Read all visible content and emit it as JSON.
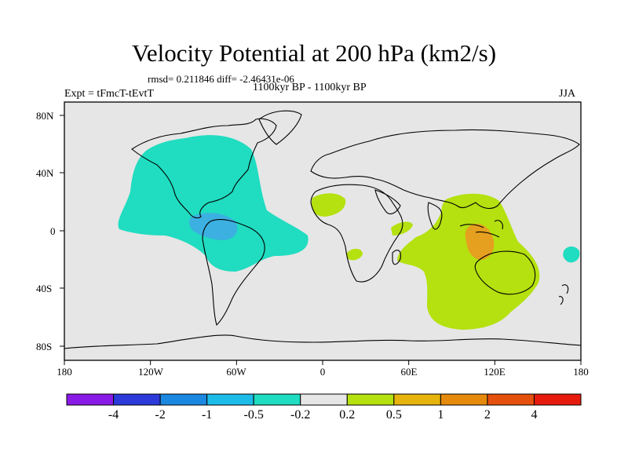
{
  "title": "Velocity Potential at 200 hPa (km2/s)",
  "stats": "rmsd= 0.211846  diff= -2.46431e-06",
  "experiment": "Expt = tFmcT-tEvtT",
  "period": "1100kyr BP - 1100kyr BP",
  "season": "JJA",
  "lat_labels": [
    "80N",
    "40N",
    "0",
    "40S",
    "80S"
  ],
  "lon_labels": [
    "180",
    "120W",
    "60W",
    "0",
    "60E",
    "120E",
    "180"
  ],
  "colorbar": {
    "colors": [
      "#8a1ae6",
      "#2b3ad9",
      "#1a87e0",
      "#1dbce8",
      "#20dcc0",
      "#e6e6e6",
      "#b4e10f",
      "#e6b40c",
      "#e68a0d",
      "#e6500d",
      "#e61a0d"
    ],
    "labels": [
      "-4",
      "-2",
      "-1",
      "-0.5",
      "-0.2",
      "0.2",
      "0.5",
      "1",
      "2",
      "4"
    ]
  },
  "map_colors": {
    "background": "#e6e6e6",
    "negative_weak": "#20dcc0",
    "negative_mid": "#3cb0e0",
    "positive_weak": "#b4e10f",
    "positive_mid": "#e6a020"
  }
}
